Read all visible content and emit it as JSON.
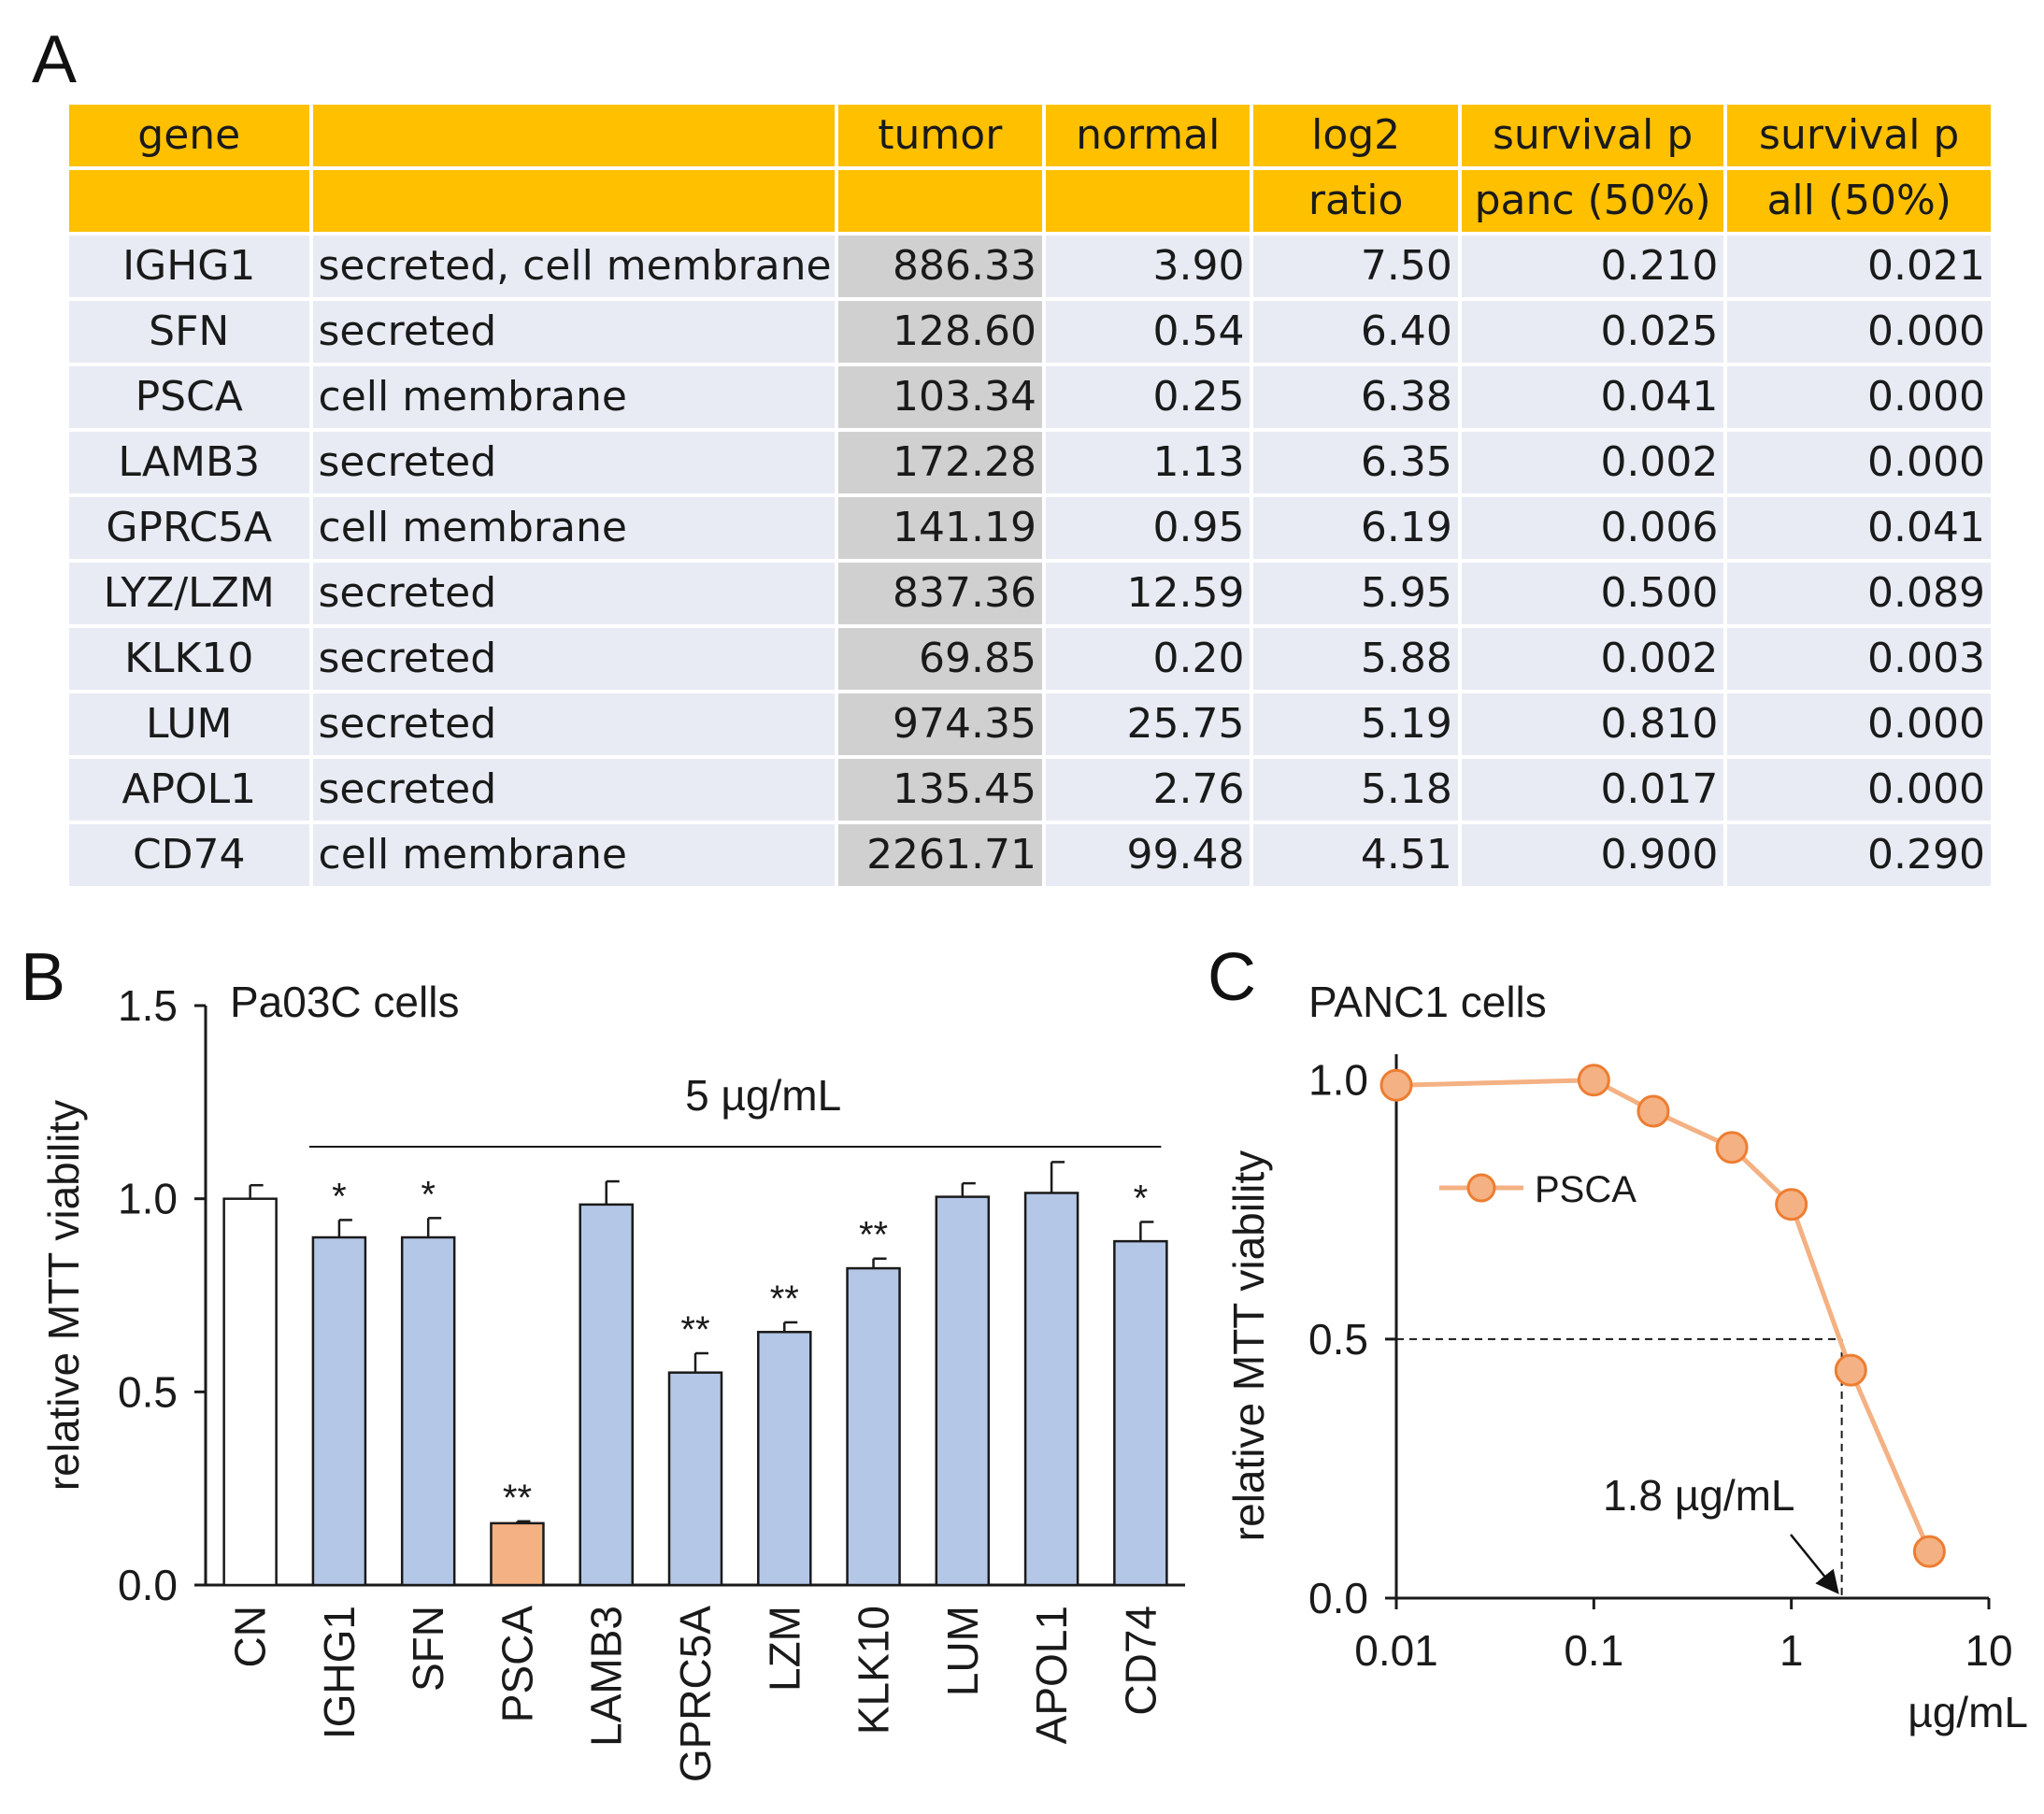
{
  "panel_labels": {
    "a": "A",
    "b": "B",
    "c": "C"
  },
  "table": {
    "header_row1": [
      "gene",
      "",
      "tumor",
      "normal",
      "log2",
      "survival p",
      "survival p"
    ],
    "header_row2": [
      "",
      "",
      "",
      "",
      "ratio",
      "panc (50%)",
      "all (50%)"
    ],
    "rows": [
      [
        "IGHG1",
        "secreted, cell membrane",
        "886.33",
        "3.90",
        "7.50",
        "0.210",
        "0.021"
      ],
      [
        "SFN",
        "secreted",
        "128.60",
        "0.54",
        "6.40",
        "0.025",
        "0.000"
      ],
      [
        "PSCA",
        "cell membrane",
        "103.34",
        "0.25",
        "6.38",
        "0.041",
        "0.000"
      ],
      [
        "LAMB3",
        "secreted",
        "172.28",
        "1.13",
        "6.35",
        "0.002",
        "0.000"
      ],
      [
        "GPRC5A",
        "cell membrane",
        "141.19",
        "0.95",
        "6.19",
        "0.006",
        "0.041"
      ],
      [
        "LYZ/LZM",
        "secreted",
        "837.36",
        "12.59",
        "5.95",
        "0.500",
        "0.089"
      ],
      [
        "KLK10",
        "secreted",
        "69.85",
        "0.20",
        "5.88",
        "0.002",
        "0.003"
      ],
      [
        "LUM",
        "secreted",
        "974.35",
        "25.75",
        "5.19",
        "0.810",
        "0.000"
      ],
      [
        "APOL1",
        "secreted",
        "135.45",
        "2.76",
        "5.18",
        "0.017",
        "0.000"
      ],
      [
        "CD74",
        "cell membrane",
        "2261.71",
        "99.48",
        "4.51",
        "0.900",
        "0.290"
      ]
    ]
  },
  "chart_data": [
    {
      "type": "bar",
      "title": "Pa03C cells",
      "ylabel": "relative MTT viability",
      "xlabel": "",
      "ylim": [
        0,
        1.5
      ],
      "yticks": [
        "0.0",
        "0.5",
        "1.0",
        "1.5"
      ],
      "bracket_label": "5 µg/mL",
      "categories": [
        "CN",
        "IGHG1",
        "SFN",
        "PSCA",
        "LAMB3",
        "GPRC5A",
        "LZM",
        "KLK10",
        "LUM",
        "APOL1",
        "CD74"
      ],
      "values": [
        1.0,
        0.9,
        0.9,
        0.16,
        0.985,
        0.55,
        0.655,
        0.82,
        1.005,
        1.015,
        0.89
      ],
      "errors": [
        0.035,
        0.045,
        0.05,
        0.005,
        0.06,
        0.05,
        0.025,
        0.025,
        0.035,
        0.08,
        0.05
      ],
      "significance": [
        "",
        "*",
        "*",
        "**",
        "",
        "**",
        "**",
        "**",
        "",
        "",
        "*"
      ],
      "colors": {
        "control": "#ffffff",
        "treated": "#b4c7e7",
        "highlight": "#f4b183",
        "edge": "#1a1a1a"
      }
    },
    {
      "type": "line",
      "title": "PANC1 cells",
      "ylabel": "relative MTT viability",
      "xlabel": "µg/mL",
      "xscale": "log",
      "xlim": [
        0.01,
        10
      ],
      "ylim": [
        0,
        1.05
      ],
      "xticks": [
        "0.01",
        "0.1",
        "1",
        "10"
      ],
      "yticks": [
        "0.0",
        "0.5",
        "1.0"
      ],
      "legend_location": "upper-left",
      "series": [
        {
          "name": "PSCA",
          "x": [
            0.01,
            0.1,
            0.2,
            0.5,
            1,
            2,
            5
          ],
          "y": [
            0.99,
            1.0,
            0.94,
            0.87,
            0.76,
            0.44,
            0.09
          ],
          "color": "#f4b183",
          "edge": "#ed7d31"
        }
      ],
      "annotation": {
        "text": "1.8 µg/mL",
        "x": 1.8,
        "y": 0.5
      }
    }
  ]
}
